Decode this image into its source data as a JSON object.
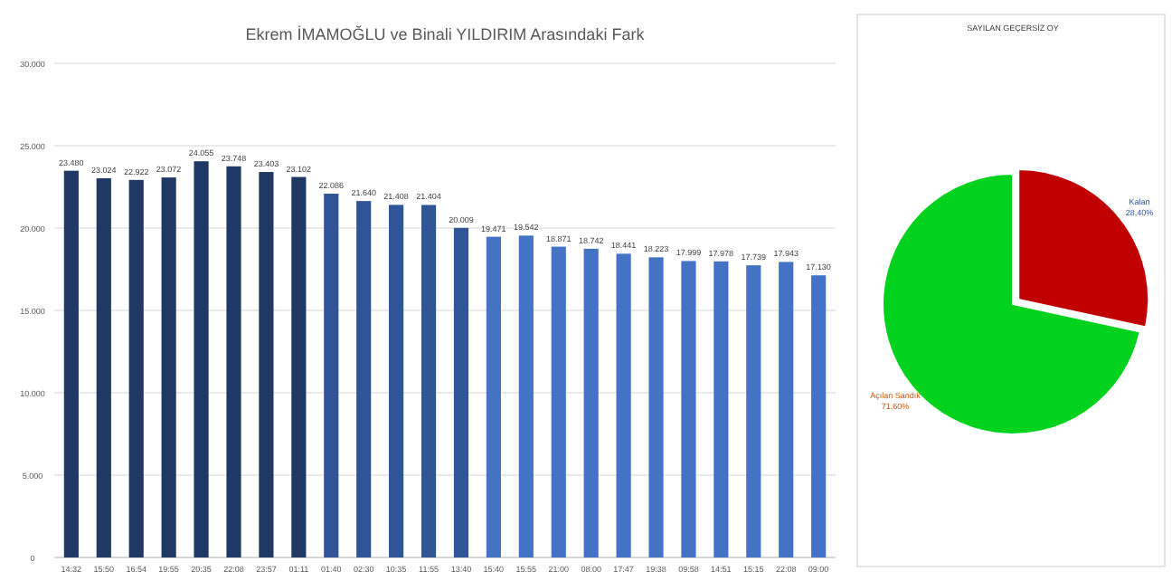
{
  "chart_data": [
    {
      "type": "bar",
      "title": "Ekrem İMAMOĞLU ve Binali YILDIRIM Arasındaki Fark",
      "categories": [
        "14:32",
        "15:50",
        "16:54",
        "19:55",
        "20:35",
        "22:08",
        "23:57",
        "01:11",
        "01:40",
        "02:30",
        "10:35",
        "11:55",
        "13:40",
        "15:40",
        "15:55",
        "21:00",
        "08:00",
        "17:47",
        "19:38",
        "09:58",
        "14:51",
        "15:15",
        "22:08",
        "09:00"
      ],
      "values": [
        23480,
        23024,
        22922,
        23072,
        24055,
        23748,
        23403,
        23102,
        22086,
        21640,
        21408,
        21404,
        20009,
        19471,
        19542,
        18871,
        18742,
        18441,
        18223,
        17999,
        17978,
        17739,
        17943,
        17130
      ],
      "value_labels": [
        "23.480",
        "23.024",
        "22.922",
        "23.072",
        "24.055",
        "23.748",
        "23.403",
        "23.102",
        "22.086",
        "21.640",
        "21.408",
        "21.404",
        "20.009",
        "19.471",
        "19.542",
        "18.871",
        "18.742",
        "18.441",
        "18.223",
        "17.999",
        "17.978",
        "17.739",
        "17.943",
        "17.130"
      ],
      "colors": [
        "#203864",
        "#203864",
        "#203864",
        "#203864",
        "#203864",
        "#203864",
        "#203864",
        "#203864",
        "#2f5597",
        "#2f5597",
        "#2f5597",
        "#2f5597",
        "#2f5597",
        "#4472c4",
        "#4472c4",
        "#4472c4",
        "#4472c4",
        "#4472c4",
        "#4472c4",
        "#4472c4",
        "#4472c4",
        "#4472c4",
        "#4472c4",
        "#4472c4"
      ],
      "ylim": [
        0,
        30000
      ],
      "yticks": [
        {
          "value": 0,
          "label": "0"
        },
        {
          "value": 5000,
          "label": "5.000"
        },
        {
          "value": 10000,
          "label": "10.000"
        },
        {
          "value": 15000,
          "label": "15.000"
        },
        {
          "value": 20000,
          "label": "20.000"
        },
        {
          "value": 25000,
          "label": "25.000"
        },
        {
          "value": 30000,
          "label": "30.000"
        }
      ],
      "grid": "y"
    },
    {
      "type": "pie",
      "title": "SAYILAN GEÇERSİZ OY",
      "categories": [
        "Kalan",
        "Açılan Sandık"
      ],
      "values": [
        28.4,
        71.6
      ],
      "value_labels": [
        "28,40%",
        "71,60%"
      ],
      "colors": [
        "#c00000",
        "#00d21e"
      ]
    }
  ]
}
